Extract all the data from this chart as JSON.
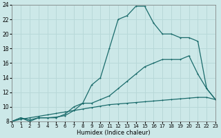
{
  "xlabel": "Humidex (Indice chaleur)",
  "x_ticks": [
    0,
    1,
    2,
    3,
    4,
    5,
    6,
    7,
    8,
    9,
    10,
    11,
    12,
    13,
    14,
    15,
    16,
    17,
    18,
    19,
    20,
    21,
    22,
    23
  ],
  "ylim": [
    8,
    24
  ],
  "xlim": [
    0,
    23
  ],
  "yticks": [
    8,
    10,
    12,
    14,
    16,
    18,
    20,
    22,
    24
  ],
  "background_color": "#cce8e8",
  "grid_color": "#b8d8d8",
  "line_color": "#1a6b6b",
  "line1_x": [
    0,
    1,
    2,
    3,
    4,
    5,
    6,
    7,
    8,
    9,
    10,
    11,
    12,
    13,
    14,
    15,
    16,
    17,
    18,
    19,
    20,
    21,
    22,
    23
  ],
  "line1_y": [
    8.0,
    8.3,
    8.5,
    8.7,
    8.9,
    9.1,
    9.3,
    9.5,
    9.7,
    9.9,
    10.1,
    10.3,
    10.4,
    10.5,
    10.6,
    10.7,
    10.8,
    10.9,
    11.0,
    11.1,
    11.2,
    11.3,
    11.3,
    11.0
  ],
  "line2_x": [
    0,
    1,
    2,
    3,
    4,
    5,
    6,
    7,
    8,
    9,
    10,
    11,
    12,
    13,
    14,
    15,
    16,
    17,
    18,
    19,
    20,
    21,
    22,
    23
  ],
  "line2_y": [
    8.0,
    8.5,
    8.2,
    8.5,
    8.5,
    8.6,
    8.8,
    9.5,
    10.5,
    10.5,
    11.0,
    11.5,
    12.5,
    13.5,
    14.5,
    15.5,
    16.0,
    16.5,
    16.5,
    16.5,
    17.0,
    14.5,
    12.5,
    11.0
  ],
  "line3_x": [
    0,
    1,
    2,
    3,
    4,
    5,
    6,
    7,
    8,
    9,
    10,
    11,
    12,
    13,
    14,
    15,
    16,
    17,
    18,
    19,
    20,
    21,
    22,
    23
  ],
  "line3_y": [
    8.0,
    8.5,
    8.0,
    8.5,
    8.5,
    8.5,
    9.0,
    10.0,
    10.5,
    13.0,
    14.0,
    18.0,
    22.0,
    22.5,
    23.8,
    23.8,
    21.5,
    20.0,
    20.0,
    19.5,
    19.5,
    19.0,
    12.5,
    11.0
  ]
}
